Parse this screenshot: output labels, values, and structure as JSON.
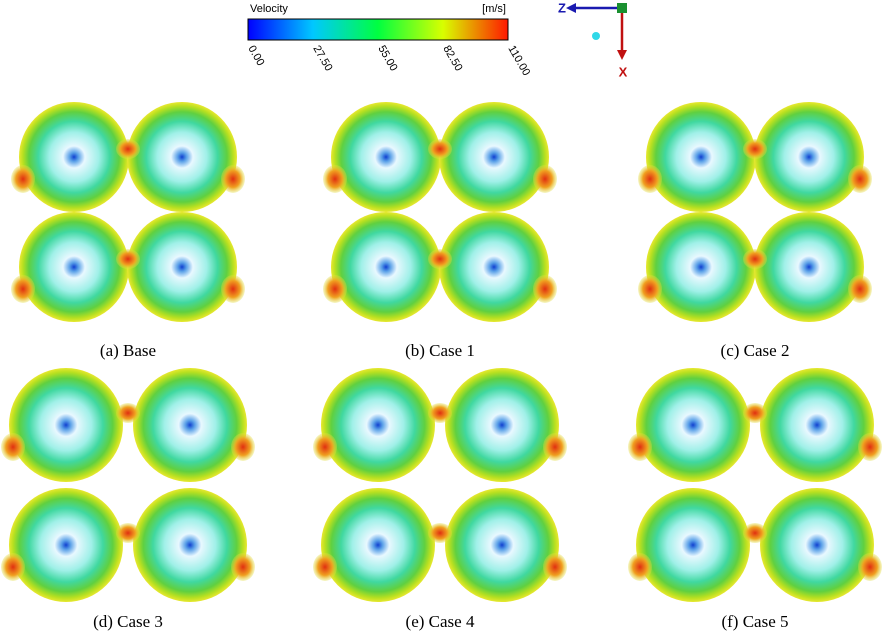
{
  "colorbar": {
    "title": "Velocity",
    "unit": "[m/s]",
    "ticks": [
      "0.00",
      "27.50",
      "55.00",
      "82.50",
      "110.00"
    ]
  },
  "axes": {
    "horizontal": "Z",
    "vertical": "X"
  },
  "panels": [
    {
      "caption": "(a) Base"
    },
    {
      "caption": "(b) Case 1"
    },
    {
      "caption": "(c) Case 2"
    },
    {
      "caption": "(d) Case 3"
    },
    {
      "caption": "(e) Case 4"
    },
    {
      "caption": "(f) Case 5"
    }
  ]
}
